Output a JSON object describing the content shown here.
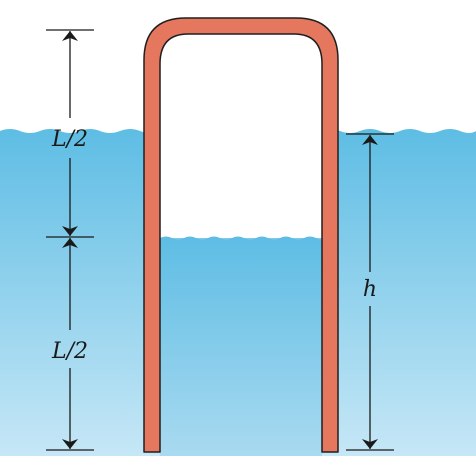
{
  "labels": {
    "upper_half": "L/2",
    "lower_half": "L/2",
    "depth": "h"
  },
  "colors": {
    "tube": "#e4775e",
    "tube_outline": "#1f1f1f",
    "water_top": "#5ebde4",
    "water_bottom": "#c6e7f6",
    "dimension": "#1a1a1a"
  }
}
